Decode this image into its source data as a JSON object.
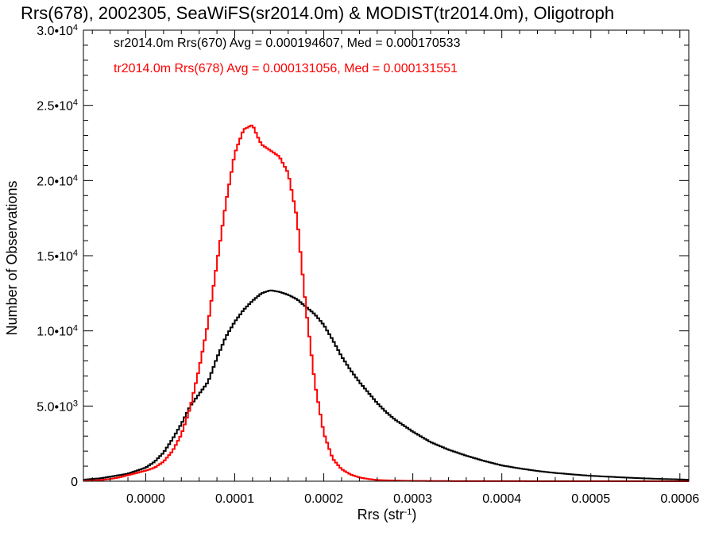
{
  "chart_data": {
    "type": "histogram",
    "title": "Rrs(678), 2002305, SeaWiFS(sr2014.0m) & MODIST(tr2014.0m), Oligotroph",
    "xlabel": "Rrs (str",
    "xlabel_sup": "-1",
    "xlabel_close": ")",
    "ylabel": "Number of Observations",
    "xlim": [
      -7e-05,
      0.00061
    ],
    "ylim": [
      0,
      30000
    ],
    "grid": false,
    "x_ticks": [
      {
        "value": 0.0,
        "label": "0.0000"
      },
      {
        "value": 0.0001,
        "label": "0.0001"
      },
      {
        "value": 0.0002,
        "label": "0.0002"
      },
      {
        "value": 0.0003,
        "label": "0.0003"
      },
      {
        "value": 0.0004,
        "label": "0.0004"
      },
      {
        "value": 0.0005,
        "label": "0.0005"
      },
      {
        "value": 0.0006,
        "label": "0.0006"
      }
    ],
    "y_ticks": [
      {
        "value": 0,
        "mant": "0",
        "exp": ""
      },
      {
        "value": 5000,
        "mant": "5.0•10",
        "exp": "3"
      },
      {
        "value": 10000,
        "mant": "1.0•10",
        "exp": "4"
      },
      {
        "value": 15000,
        "mant": "1.5•10",
        "exp": "4"
      },
      {
        "value": 20000,
        "mant": "2.0•10",
        "exp": "4"
      },
      {
        "value": 25000,
        "mant": "2.5•10",
        "exp": "4"
      },
      {
        "value": 30000,
        "mant": "3.0•10",
        "exp": "4"
      }
    ],
    "annotations": [
      "sr2014.0m Rrs(670) Avg = 0.000194607, Med = 0.000170533",
      "tr2014.0m Rrs(678) Avg = 0.000131056, Med = 0.000131551"
    ],
    "series": [
      {
        "color": "#000000",
        "x": [
          -7e-05,
          -6e-05,
          -5e-05,
          -4e-05,
          -3e-05,
          -2e-05,
          -1e-05,
          0.0,
          1e-05,
          2e-05,
          3e-05,
          4e-05,
          5e-05,
          6e-05,
          7e-05,
          8e-05,
          9e-05,
          0.0001,
          0.00011,
          0.00012,
          0.00013,
          0.00014,
          0.00015,
          0.00016,
          0.00017,
          0.00018,
          0.00019,
          0.0002,
          0.00021,
          0.00022,
          0.00023,
          0.00024,
          0.00025,
          0.00026,
          0.00027,
          0.00028,
          0.00029,
          0.0003,
          0.00032,
          0.00034,
          0.00036,
          0.00038,
          0.0004,
          0.00042,
          0.00044,
          0.00046,
          0.00048,
          0.0005,
          0.00052,
          0.00054,
          0.00056,
          0.00058,
          0.0006,
          0.00061
        ],
        "y": [
          100,
          150,
          200,
          300,
          400,
          500,
          700,
          900,
          1300,
          1900,
          2800,
          3800,
          5000,
          5800,
          6600,
          8200,
          9600,
          10600,
          11400,
          12000,
          12500,
          12700,
          12600,
          12400,
          12100,
          11600,
          11100,
          10400,
          9400,
          8300,
          7400,
          6600,
          5900,
          5200,
          4600,
          4100,
          3700,
          3300,
          2600,
          2100,
          1700,
          1350,
          1050,
          850,
          680,
          550,
          450,
          360,
          300,
          240,
          190,
          150,
          120,
          100
        ]
      },
      {
        "color": "#ff0000",
        "x": [
          -7e-05,
          -6e-05,
          -5e-05,
          -4e-05,
          -3e-05,
          -2e-05,
          -1e-05,
          0.0,
          1e-05,
          2e-05,
          3e-05,
          4e-05,
          5e-05,
          6e-05,
          7e-05,
          8e-05,
          9e-05,
          0.0001,
          0.00011,
          0.00012,
          0.000125,
          0.00013,
          0.00014,
          0.00015,
          0.00016,
          0.00017,
          0.00018,
          0.00019,
          0.0002,
          0.00021,
          0.00022,
          0.00023,
          0.00024,
          0.00025,
          0.00026,
          0.00028,
          0.0003,
          0.00035,
          0.0004,
          0.0005,
          0.0006,
          0.00061
        ],
        "y": [
          30,
          50,
          80,
          150,
          250,
          400,
          550,
          700,
          900,
          1300,
          2000,
          3100,
          4900,
          7500,
          10500,
          14500,
          18500,
          21800,
          23400,
          23700,
          23000,
          22400,
          22000,
          21600,
          20500,
          17500,
          11500,
          6500,
          3200,
          1500,
          800,
          450,
          250,
          150,
          80,
          40,
          20,
          8,
          4,
          2,
          1,
          1
        ]
      }
    ]
  }
}
